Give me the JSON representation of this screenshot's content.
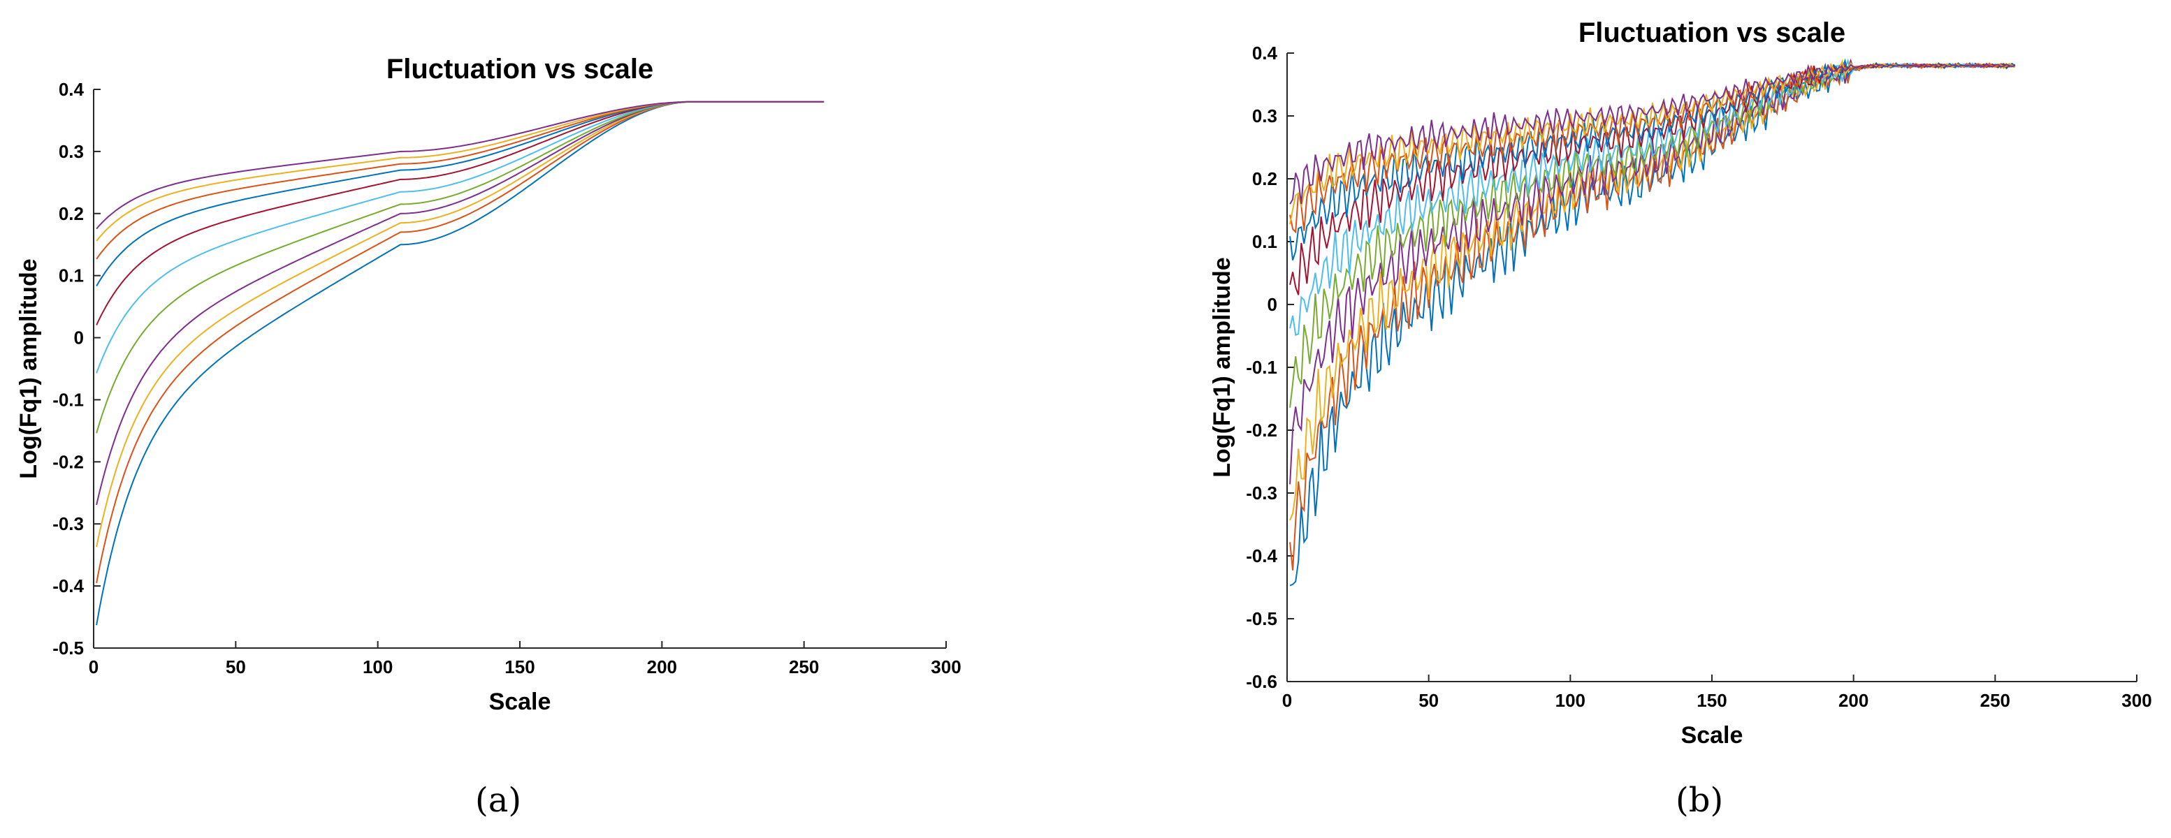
{
  "chart_data": [
    {
      "type": "line",
      "panel_label": "(a)",
      "title": "Fluctuation vs scale",
      "xlabel": "Scale",
      "ylabel": "Log(Fq1) amplitude",
      "xlim": [
        0,
        300
      ],
      "ylim": [
        -0.5,
        0.4
      ],
      "xticks": [
        "0",
        "50",
        "100",
        "150",
        "200",
        "250",
        "300"
      ],
      "yticks": [
        "-0.5",
        "-0.4",
        "-0.3",
        "-0.2",
        "-0.1",
        "0",
        "0.1",
        "0.2",
        "0.3",
        "0.4"
      ],
      "grid": false,
      "legend": "none",
      "noise": 0,
      "x_end": 257,
      "series": [
        {
          "color": "#0072BD",
          "start": -0.49,
          "mid": 0.15,
          "end": 0.38
        },
        {
          "color": "#D95319",
          "start": -0.42,
          "mid": 0.17,
          "end": 0.38
        },
        {
          "color": "#EDB120",
          "start": -0.36,
          "mid": 0.185,
          "end": 0.38
        },
        {
          "color": "#7E2F8E",
          "start": -0.29,
          "mid": 0.2,
          "end": 0.38
        },
        {
          "color": "#77AC30",
          "start": -0.17,
          "mid": 0.215,
          "end": 0.38
        },
        {
          "color": "#4DBEEE",
          "start": -0.07,
          "mid": 0.235,
          "end": 0.38
        },
        {
          "color": "#A2142F",
          "start": 0.01,
          "mid": 0.255,
          "end": 0.38
        },
        {
          "color": "#0072BD",
          "start": 0.075,
          "mid": 0.27,
          "end": 0.38
        },
        {
          "color": "#D95319",
          "start": 0.12,
          "mid": 0.28,
          "end": 0.38
        },
        {
          "color": "#EDB120",
          "start": 0.15,
          "mid": 0.29,
          "end": 0.38
        },
        {
          "color": "#7E2F8E",
          "start": 0.17,
          "mid": 0.3,
          "end": 0.38
        }
      ]
    },
    {
      "type": "line",
      "panel_label": "(b)",
      "title": "Fluctuation vs scale",
      "xlabel": "Scale",
      "ylabel": "Log(Fq1) amplitude",
      "xlim": [
        0,
        300
      ],
      "ylim": [
        -0.6,
        0.4
      ],
      "xticks": [
        "0",
        "50",
        "100",
        "150",
        "200",
        "250",
        "300"
      ],
      "yticks": [
        "-0.6",
        "-0.5",
        "-0.4",
        "-0.3",
        "-0.2",
        "-0.1",
        "0",
        "0.1",
        "0.2",
        "0.3",
        "0.4"
      ],
      "grid": false,
      "legend": "none",
      "noise": 1,
      "x_end": 257,
      "series": [
        {
          "color": "#0072BD",
          "start": -0.5,
          "mid": 0.18,
          "end": 0.38
        },
        {
          "color": "#D95319",
          "start": -0.42,
          "mid": 0.19,
          "end": 0.38
        },
        {
          "color": "#EDB120",
          "start": -0.36,
          "mid": 0.2,
          "end": 0.38
        },
        {
          "color": "#7E2F8E",
          "start": -0.25,
          "mid": 0.21,
          "end": 0.38
        },
        {
          "color": "#77AC30",
          "start": -0.16,
          "mid": 0.225,
          "end": 0.38
        },
        {
          "color": "#4DBEEE",
          "start": -0.07,
          "mid": 0.24,
          "end": 0.38
        },
        {
          "color": "#A2142F",
          "start": 0.01,
          "mid": 0.26,
          "end": 0.38
        },
        {
          "color": "#0072BD",
          "start": 0.075,
          "mid": 0.27,
          "end": 0.38
        },
        {
          "color": "#D95319",
          "start": 0.12,
          "mid": 0.28,
          "end": 0.38
        },
        {
          "color": "#EDB120",
          "start": 0.145,
          "mid": 0.29,
          "end": 0.38
        },
        {
          "color": "#7E2F8E",
          "start": 0.17,
          "mid": 0.3,
          "end": 0.38
        }
      ]
    }
  ]
}
